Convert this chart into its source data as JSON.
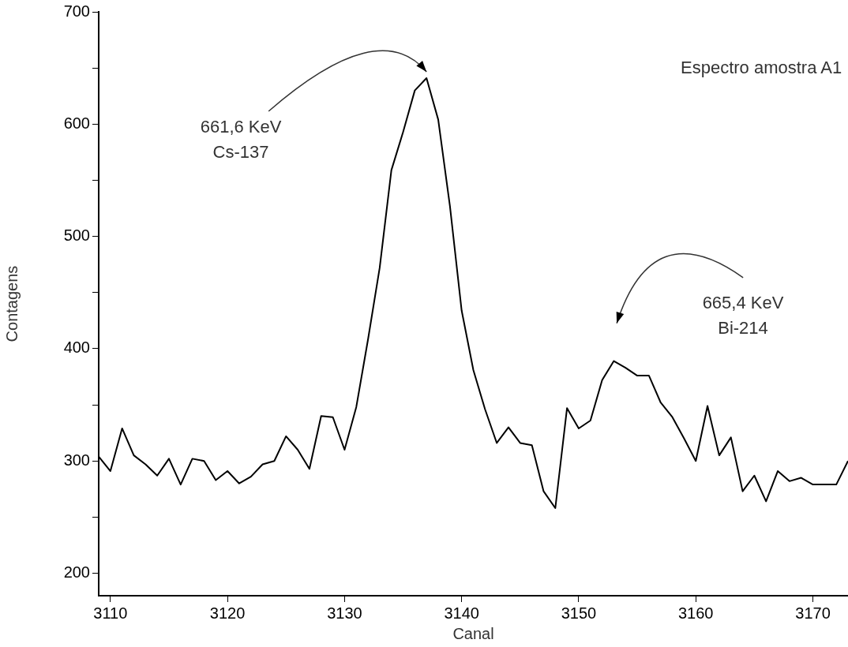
{
  "chart_data": {
    "type": "line",
    "xlabel": "Canal",
    "ylabel": "Contagens",
    "annotations": [
      "Espectro amostra A1",
      {
        "text": "661,6 KeV\nCs-137",
        "x": 3137,
        "y": 641
      },
      "665,4 KeV\nBi-214"
    ],
    "x": [
      3109,
      3110,
      3111,
      3112,
      3113,
      3114,
      3115,
      3116,
      3117,
      3118,
      3119,
      3120,
      3121,
      3122,
      3123,
      3124,
      3125,
      3126,
      3127,
      3128,
      3129,
      3130,
      3131,
      3132,
      3133,
      3134,
      3135,
      3136,
      3137,
      3138,
      3139,
      3140,
      3141,
      3142,
      3143,
      3144,
      3145,
      3146,
      3147,
      3148,
      3149,
      3150,
      3151,
      3152,
      3153,
      3154,
      3155,
      3156,
      3157,
      3158,
      3159,
      3160,
      3161,
      3162,
      3163,
      3164,
      3165,
      3166,
      3167,
      3168,
      3169,
      3170,
      3171,
      3172,
      3173
    ],
    "series": [
      {
        "color": "#000000",
        "values": [
          304,
          291,
          329,
          305,
          297,
          287,
          302,
          279,
          302,
          300,
          283,
          291,
          280,
          286,
          297,
          300,
          322,
          310,
          293,
          340,
          339,
          310,
          348,
          408,
          472,
          559,
          593,
          630,
          641,
          604,
          527,
          434,
          381,
          346,
          316,
          330,
          316,
          314,
          273,
          258,
          347,
          329,
          336,
          372,
          389,
          383,
          376,
          376,
          352,
          339,
          320,
          300,
          349,
          305,
          321,
          273,
          287,
          264,
          291,
          282,
          285,
          279,
          279,
          279,
          300
        ]
      }
    ],
    "xlim": [
      3109,
      3173
    ],
    "xticks": [
      3110,
      3120,
      3130,
      3140,
      3150,
      3160,
      3170
    ],
    "ylim": [
      180,
      700
    ],
    "yticks": [
      200,
      {
        "value": 250,
        "label": null
      },
      300,
      {
        "value": 350,
        "label": null
      },
      400,
      {
        "value": 450,
        "label": null
      },
      500,
      {
        "value": 550,
        "label": null
      },
      600,
      {
        "value": 650,
        "label": null
      },
      700
    ],
    "grid": false,
    "legend": false,
    "marker": "none",
    "line_style": "solid"
  }
}
